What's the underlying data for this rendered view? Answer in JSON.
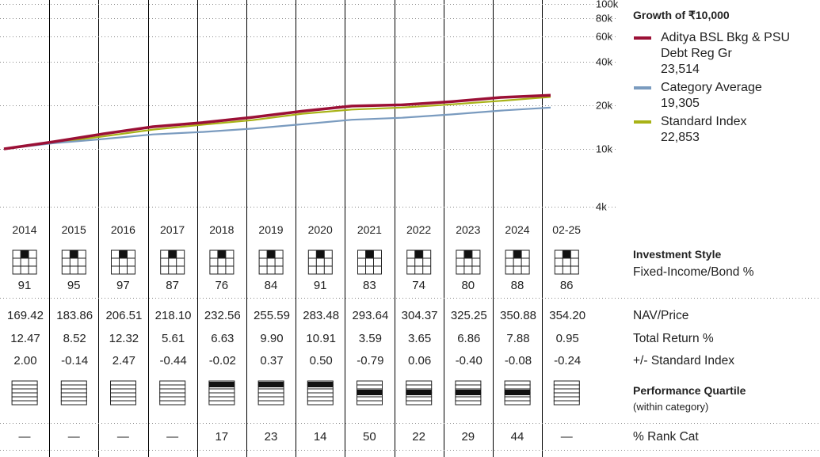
{
  "chart_data": {
    "type": "line",
    "title": "Growth of ₹10,000",
    "y_scale": "log",
    "y_ticks": [
      "4k",
      "10k",
      "20k",
      "40k",
      "60k",
      "80k",
      "100k"
    ],
    "x_labels": [
      "2014",
      "2015",
      "2016",
      "2017",
      "2018",
      "2019",
      "2020",
      "2021",
      "2022",
      "2023",
      "2024",
      "02-25"
    ],
    "series": [
      {
        "name": "Aditya BSL Bkg & PSU Debt Reg Gr",
        "final_value": "23,514",
        "color": "#9b1036",
        "values": [
          10000,
          11200,
          12700,
          14230,
          15200,
          16540,
          18230,
          19780,
          20160,
          21200,
          22700,
          23514
        ]
      },
      {
        "name": "Category Average",
        "final_value": "19,305",
        "color": "#7a9bbf",
        "values": [
          10000,
          10950,
          11700,
          12600,
          13100,
          13800,
          14800,
          15900,
          16400,
          17300,
          18400,
          19305
        ]
      },
      {
        "name": "Standard Index",
        "final_value": "22,853",
        "color": "#a8b216",
        "values": [
          10000,
          11000,
          12200,
          13600,
          14700,
          15800,
          17500,
          18700,
          19300,
          20300,
          21500,
          22853
        ]
      }
    ]
  },
  "investment_style": {
    "label": "Investment Style",
    "sublabel": "Fixed-Income/Bond %",
    "values": [
      "91",
      "95",
      "97",
      "87",
      "76",
      "84",
      "91",
      "83",
      "74",
      "80",
      "88",
      "86"
    ]
  },
  "table": {
    "rows": [
      {
        "label": "NAV/Price",
        "values": [
          "169.42",
          "183.86",
          "206.51",
          "218.10",
          "232.56",
          "255.59",
          "283.48",
          "293.64",
          "304.37",
          "325.25",
          "350.88",
          "354.20"
        ]
      },
      {
        "label": "Total Return %",
        "values": [
          "12.47",
          "8.52",
          "12.32",
          "5.61",
          "6.63",
          "9.90",
          "10.91",
          "3.59",
          "3.65",
          "6.86",
          "7.88",
          "0.95"
        ]
      },
      {
        "label": "+/- Standard Index",
        "values": [
          "2.00",
          "-0.14",
          "2.47",
          "-0.44",
          "-0.02",
          "0.37",
          "0.50",
          "-0.79",
          "0.06",
          "-0.40",
          "-0.08",
          "-0.24"
        ]
      }
    ]
  },
  "performance_quartile": {
    "label": "Performance Quartile",
    "sublabel": "(within category)",
    "quartiles": [
      0,
      0,
      0,
      0,
      1,
      1,
      1,
      2,
      2,
      2,
      2,
      0
    ]
  },
  "rank_cat": {
    "label": "% Rank Cat",
    "values": [
      "—",
      "—",
      "—",
      "—",
      "17",
      "23",
      "14",
      "50",
      "22",
      "29",
      "44",
      "—"
    ]
  }
}
